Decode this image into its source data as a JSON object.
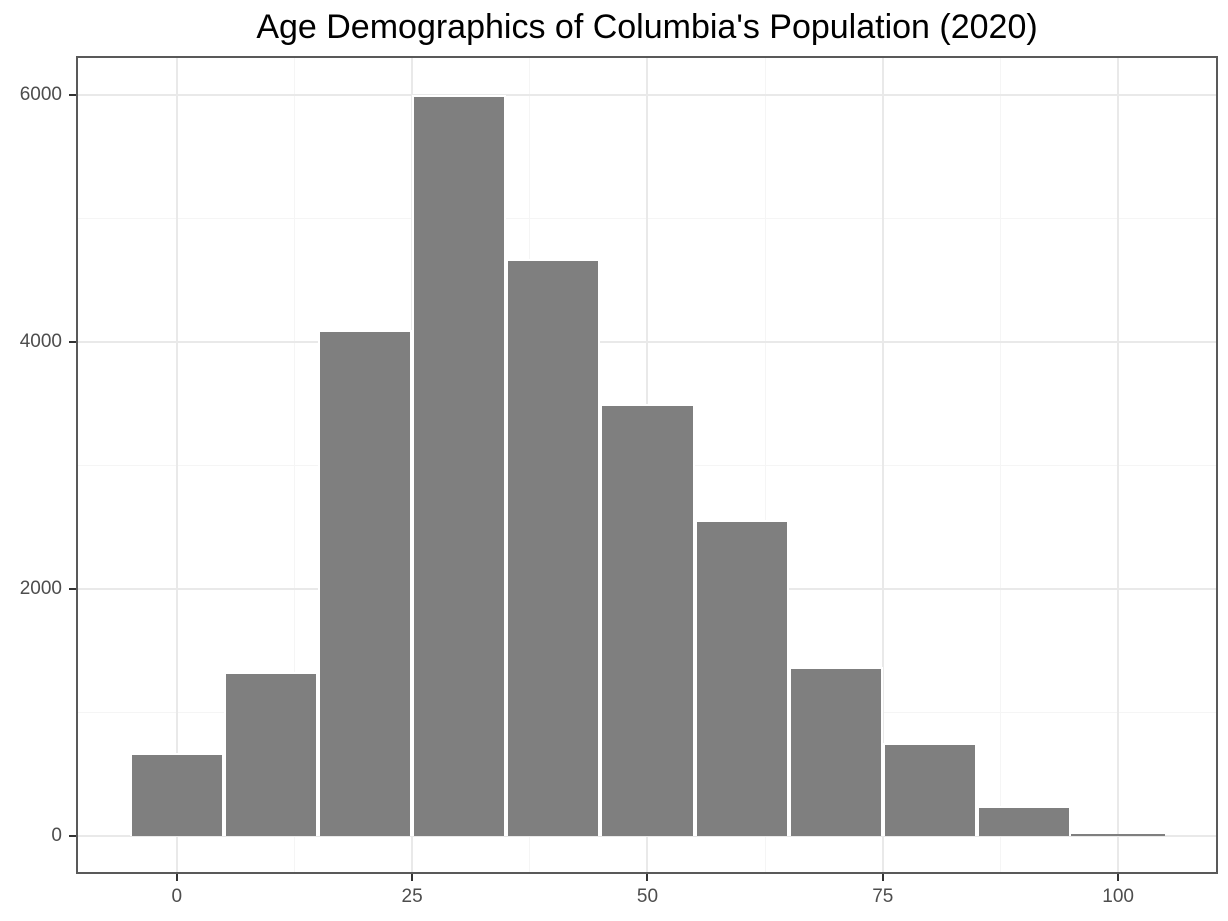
{
  "chart_data": {
    "type": "bar",
    "subtype": "histogram",
    "title": "Age Demographics of Columbia's Population (2020)",
    "xlabel": "",
    "ylabel": "",
    "bin_width": 10,
    "bin_edges": [
      -5,
      5,
      15,
      25,
      35,
      45,
      55,
      65,
      75,
      85,
      95,
      105
    ],
    "bin_centers": [
      0,
      10,
      20,
      30,
      40,
      50,
      60,
      70,
      80,
      90,
      100
    ],
    "counts": [
      670,
      1330,
      4100,
      6000,
      4670,
      3500,
      2560,
      1370,
      750,
      245,
      15
    ],
    "x_tick_labels": [
      "0",
      "25",
      "50",
      "75",
      "100"
    ],
    "x_tick_values": [
      0,
      25,
      50,
      75,
      100
    ],
    "x_minor_values": [
      12.5,
      37.5,
      62.5,
      87.5
    ],
    "y_tick_labels": [
      "0",
      "2000",
      "4000",
      "6000"
    ],
    "y_tick_values": [
      0,
      2000,
      4000,
      6000
    ],
    "y_minor_values": [
      1000,
      3000,
      5000
    ],
    "x_domain": [
      -10.6,
      110.5
    ],
    "y_domain": [
      -300,
      6310
    ],
    "grid": true,
    "legend": false,
    "colors": {
      "bar_fill": "#7f7f7f",
      "bar_stroke": "#ffffff",
      "panel_border": "#595959",
      "grid_major": "#e9e9e9",
      "grid_minor": "#f5f5f5",
      "tick_mark": "#333333",
      "axis_text": "#4d4d4d",
      "title_text": "#000000",
      "background": "#ffffff"
    }
  }
}
